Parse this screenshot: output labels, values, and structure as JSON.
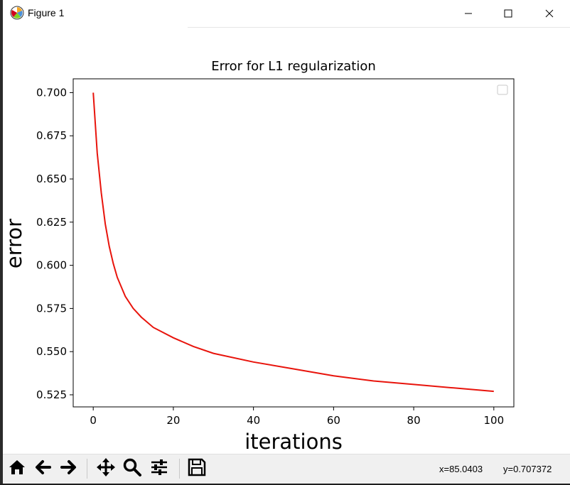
{
  "window": {
    "title": "Figure 1",
    "icon": "matplotlib-icon",
    "controls": [
      "minimize-icon",
      "maximize-icon",
      "close-icon"
    ]
  },
  "chart_data": {
    "type": "line",
    "title": "Error for L1 regularization",
    "xlabel": "iterations",
    "ylabel": "error",
    "xlim": [
      -5,
      105
    ],
    "ylim": [
      0.518,
      0.708
    ],
    "xticks": [
      0,
      20,
      40,
      60,
      80,
      100
    ],
    "yticks": [
      0.525,
      0.55,
      0.575,
      0.6,
      0.625,
      0.65,
      0.675,
      0.7
    ],
    "xtick_labels": [
      "0",
      "20",
      "40",
      "60",
      "80",
      "100"
    ],
    "ytick_labels": [
      "0.525",
      "0.550",
      "0.575",
      "0.600",
      "0.625",
      "0.650",
      "0.675",
      "0.700"
    ],
    "legend": "top-right (empty)",
    "grid": false,
    "series": [
      {
        "color": "#e8140c",
        "x": [
          0,
          1,
          2,
          3,
          4,
          5,
          6,
          8,
          10,
          12,
          15,
          20,
          25,
          30,
          40,
          50,
          60,
          70,
          80,
          90,
          100
        ],
        "y": [
          0.7,
          0.665,
          0.642,
          0.624,
          0.611,
          0.601,
          0.593,
          0.582,
          0.575,
          0.57,
          0.564,
          0.558,
          0.553,
          0.549,
          0.544,
          0.54,
          0.536,
          0.533,
          0.531,
          0.529,
          0.527
        ]
      }
    ]
  },
  "toolbar": {
    "buttons": [
      "home-icon",
      "back-icon",
      "forward-icon",
      "pan-icon",
      "zoom-icon",
      "configure-subplots-icon",
      "save-icon"
    ],
    "x_readout": "x=85.0403",
    "y_readout": "y=0.707372"
  }
}
